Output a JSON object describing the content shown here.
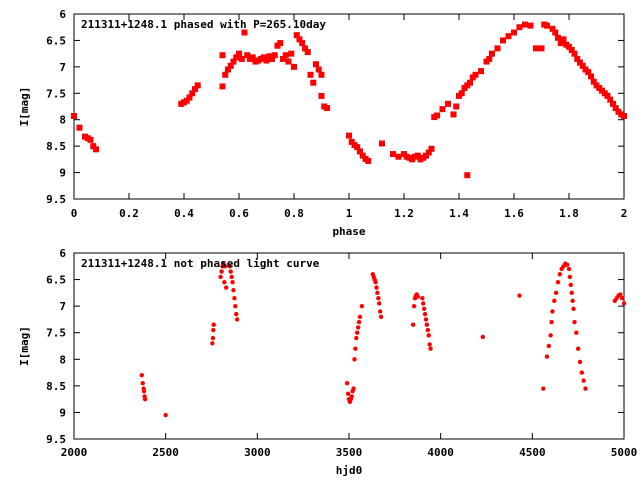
{
  "colors": {
    "marker": "#ff0000",
    "frame": "#000000",
    "background": "#ffffff"
  },
  "chart_data": [
    {
      "type": "scatter",
      "title": "211311+1248.1 phased with P=265.10day",
      "xlabel": "phase",
      "ylabel": "I[mag]",
      "xlim": [
        0,
        2
      ],
      "ylim": [
        9.5,
        6
      ],
      "y_inverted": true,
      "grid": false,
      "marker": "filled-square",
      "xticks": [
        "0",
        "0.2",
        "0.4",
        "0.6",
        "0.8",
        "1",
        "1.2",
        "1.4",
        "1.6",
        "1.8",
        "2"
      ],
      "yticks": [
        "6",
        "6.5",
        "7",
        "7.5",
        "8",
        "8.5",
        "9",
        "9.5"
      ],
      "series": [
        {
          "points": [
            [
              0.0,
              7.93
            ],
            [
              0.02,
              8.15
            ],
            [
              0.04,
              8.32
            ],
            [
              0.05,
              8.35
            ],
            [
              0.06,
              8.38
            ],
            [
              0.07,
              8.5
            ],
            [
              0.08,
              8.56
            ],
            [
              0.39,
              7.7
            ],
            [
              0.4,
              7.67
            ],
            [
              0.41,
              7.64
            ],
            [
              0.42,
              7.58
            ],
            [
              0.43,
              7.5
            ],
            [
              0.44,
              7.42
            ],
            [
              0.45,
              7.35
            ],
            [
              0.54,
              7.37
            ],
            [
              0.54,
              6.78
            ],
            [
              0.55,
              7.15
            ],
            [
              0.56,
              7.05
            ],
            [
              0.57,
              6.98
            ],
            [
              0.58,
              6.9
            ],
            [
              0.59,
              6.82
            ],
            [
              0.6,
              6.75
            ],
            [
              0.61,
              6.85
            ],
            [
              0.62,
              6.35
            ],
            [
              0.63,
              6.78
            ],
            [
              0.64,
              6.85
            ],
            [
              0.65,
              6.82
            ],
            [
              0.66,
              6.9
            ],
            [
              0.67,
              6.88
            ],
            [
              0.68,
              6.85
            ],
            [
              0.69,
              6.82
            ],
            [
              0.7,
              6.88
            ],
            [
              0.71,
              6.8
            ],
            [
              0.72,
              6.85
            ],
            [
              0.73,
              6.78
            ],
            [
              0.74,
              6.6
            ],
            [
              0.75,
              6.55
            ],
            [
              0.76,
              6.85
            ],
            [
              0.77,
              6.78
            ],
            [
              0.78,
              6.9
            ],
            [
              0.79,
              6.75
            ],
            [
              0.8,
              7.0
            ],
            [
              0.81,
              6.4
            ],
            [
              0.82,
              6.48
            ],
            [
              0.83,
              6.55
            ],
            [
              0.84,
              6.65
            ],
            [
              0.85,
              6.72
            ],
            [
              0.86,
              7.15
            ],
            [
              0.87,
              7.3
            ],
            [
              0.88,
              6.95
            ],
            [
              0.89,
              7.05
            ],
            [
              0.9,
              7.15
            ],
            [
              0.9,
              7.55
            ],
            [
              0.91,
              7.75
            ],
            [
              0.92,
              7.78
            ],
            [
              1.0,
              8.3
            ],
            [
              1.01,
              8.42
            ],
            [
              1.02,
              8.48
            ],
            [
              1.03,
              8.52
            ],
            [
              1.04,
              8.6
            ],
            [
              1.05,
              8.68
            ],
            [
              1.06,
              8.74
            ],
            [
              1.07,
              8.78
            ],
            [
              1.12,
              8.45
            ],
            [
              1.16,
              8.65
            ],
            [
              1.18,
              8.7
            ],
            [
              1.2,
              8.65
            ],
            [
              1.21,
              8.7
            ],
            [
              1.22,
              8.72
            ],
            [
              1.23,
              8.75
            ],
            [
              1.24,
              8.7
            ],
            [
              1.25,
              8.68
            ],
            [
              1.26,
              8.75
            ],
            [
              1.27,
              8.72
            ],
            [
              1.28,
              8.68
            ],
            [
              1.29,
              8.62
            ],
            [
              1.3,
              8.55
            ],
            [
              1.31,
              7.95
            ],
            [
              1.32,
              7.92
            ],
            [
              1.34,
              7.8
            ],
            [
              1.36,
              7.7
            ],
            [
              1.38,
              7.9
            ],
            [
              1.39,
              7.75
            ],
            [
              1.4,
              7.55
            ],
            [
              1.41,
              7.5
            ],
            [
              1.42,
              7.4
            ],
            [
              1.43,
              7.35
            ],
            [
              1.44,
              7.3
            ],
            [
              1.45,
              7.2
            ],
            [
              1.46,
              7.15
            ],
            [
              1.48,
              7.08
            ],
            [
              1.5,
              6.9
            ],
            [
              1.51,
              6.85
            ],
            [
              1.52,
              6.75
            ],
            [
              1.54,
              6.65
            ],
            [
              1.56,
              6.5
            ],
            [
              1.58,
              6.42
            ],
            [
              1.6,
              6.35
            ],
            [
              1.62,
              6.25
            ],
            [
              1.64,
              6.2
            ],
            [
              1.66,
              6.22
            ],
            [
              1.68,
              6.65
            ],
            [
              1.7,
              6.65
            ],
            [
              1.71,
              6.2
            ],
            [
              1.72,
              6.22
            ],
            [
              1.74,
              6.28
            ],
            [
              1.75,
              6.35
            ],
            [
              1.76,
              6.45
            ],
            [
              1.77,
              6.55
            ],
            [
              1.78,
              6.48
            ],
            [
              1.79,
              6.58
            ],
            [
              1.8,
              6.62
            ],
            [
              1.81,
              6.68
            ],
            [
              1.82,
              6.75
            ],
            [
              1.83,
              6.85
            ],
            [
              1.84,
              6.92
            ],
            [
              1.85,
              6.98
            ],
            [
              1.86,
              7.05
            ],
            [
              1.87,
              7.1
            ],
            [
              1.88,
              7.18
            ],
            [
              1.89,
              7.28
            ],
            [
              1.9,
              7.35
            ],
            [
              1.91,
              7.4
            ],
            [
              1.92,
              7.45
            ],
            [
              1.93,
              7.5
            ],
            [
              1.94,
              7.55
            ],
            [
              1.95,
              7.62
            ],
            [
              1.96,
              7.7
            ],
            [
              1.97,
              7.78
            ],
            [
              1.98,
              7.85
            ],
            [
              1.99,
              7.9
            ],
            [
              2.0,
              7.93
            ],
            [
              1.43,
              9.05
            ]
          ]
        }
      ]
    },
    {
      "type": "scatter",
      "title": "211311+1248.1 not phased light curve",
      "xlabel": "hjd0",
      "ylabel": "I[mag]",
      "xlim": [
        2000,
        5000
      ],
      "ylim": [
        9.5,
        6
      ],
      "y_inverted": true,
      "grid": false,
      "marker": "filled-circle",
      "xticks": [
        "2000",
        "2500",
        "3000",
        "3500",
        "4000",
        "4500",
        "5000"
      ],
      "yticks": [
        "6",
        "6.5",
        "7",
        "7.5",
        "8",
        "8.5",
        "9",
        "9.5"
      ],
      "series": [
        {
          "points": [
            [
              2370,
              8.3
            ],
            [
              2375,
              8.45
            ],
            [
              2380,
              8.55
            ],
            [
              2382,
              8.6
            ],
            [
              2385,
              8.7
            ],
            [
              2388,
              8.75
            ],
            [
              2500,
              9.05
            ],
            [
              2755,
              7.7
            ],
            [
              2758,
              7.6
            ],
            [
              2760,
              7.45
            ],
            [
              2762,
              7.35
            ],
            [
              2800,
              6.45
            ],
            [
              2805,
              6.35
            ],
            [
              2810,
              6.25
            ],
            [
              2815,
              6.2
            ],
            [
              2820,
              6.55
            ],
            [
              2825,
              6.25
            ],
            [
              2830,
              6.65
            ],
            [
              2850,
              6.25
            ],
            [
              2855,
              6.35
            ],
            [
              2860,
              6.45
            ],
            [
              2865,
              6.55
            ],
            [
              2870,
              6.7
            ],
            [
              2875,
              6.85
            ],
            [
              2880,
              7.0
            ],
            [
              2885,
              7.15
            ],
            [
              2890,
              7.25
            ],
            [
              3490,
              8.45
            ],
            [
              3495,
              8.65
            ],
            [
              3500,
              8.75
            ],
            [
              3505,
              8.8
            ],
            [
              3510,
              8.75
            ],
            [
              3515,
              8.7
            ],
            [
              3520,
              8.6
            ],
            [
              3525,
              8.55
            ],
            [
              3530,
              8.0
            ],
            [
              3535,
              7.8
            ],
            [
              3540,
              7.6
            ],
            [
              3545,
              7.5
            ],
            [
              3550,
              7.4
            ],
            [
              3555,
              7.3
            ],
            [
              3560,
              7.2
            ],
            [
              3570,
              7.0
            ],
            [
              3630,
              6.4
            ],
            [
              3635,
              6.45
            ],
            [
              3640,
              6.5
            ],
            [
              3645,
              6.55
            ],
            [
              3650,
              6.65
            ],
            [
              3655,
              6.75
            ],
            [
              3660,
              6.85
            ],
            [
              3665,
              6.95
            ],
            [
              3670,
              7.1
            ],
            [
              3675,
              7.2
            ],
            [
              3850,
              7.35
            ],
            [
              3855,
              7.0
            ],
            [
              3860,
              6.85
            ],
            [
              3865,
              6.8
            ],
            [
              3870,
              6.78
            ],
            [
              3875,
              6.82
            ],
            [
              3900,
              6.85
            ],
            [
              3905,
              6.95
            ],
            [
              3910,
              7.05
            ],
            [
              3915,
              7.15
            ],
            [
              3920,
              7.25
            ],
            [
              3925,
              7.35
            ],
            [
              3930,
              7.45
            ],
            [
              3935,
              7.55
            ],
            [
              3940,
              7.72
            ],
            [
              3945,
              7.8
            ],
            [
              4230,
              7.58
            ],
            [
              4430,
              6.8
            ],
            [
              4560,
              8.55
            ],
            [
              4580,
              7.95
            ],
            [
              4590,
              7.75
            ],
            [
              4600,
              7.55
            ],
            [
              4605,
              7.3
            ],
            [
              4610,
              7.1
            ],
            [
              4620,
              6.9
            ],
            [
              4630,
              6.75
            ],
            [
              4640,
              6.55
            ],
            [
              4650,
              6.4
            ],
            [
              4660,
              6.3
            ],
            [
              4670,
              6.25
            ],
            [
              4680,
              6.2
            ],
            [
              4690,
              6.22
            ],
            [
              4700,
              6.3
            ],
            [
              4705,
              6.45
            ],
            [
              4710,
              6.6
            ],
            [
              4715,
              6.75
            ],
            [
              4720,
              6.9
            ],
            [
              4725,
              7.05
            ],
            [
              4730,
              7.3
            ],
            [
              4740,
              7.5
            ],
            [
              4750,
              7.8
            ],
            [
              4760,
              8.05
            ],
            [
              4770,
              8.25
            ],
            [
              4780,
              8.4
            ],
            [
              4790,
              8.55
            ],
            [
              4950,
              6.9
            ],
            [
              4960,
              6.85
            ],
            [
              4970,
              6.8
            ],
            [
              4980,
              6.78
            ],
            [
              4990,
              6.85
            ],
            [
              5000,
              6.95
            ]
          ]
        }
      ]
    }
  ]
}
